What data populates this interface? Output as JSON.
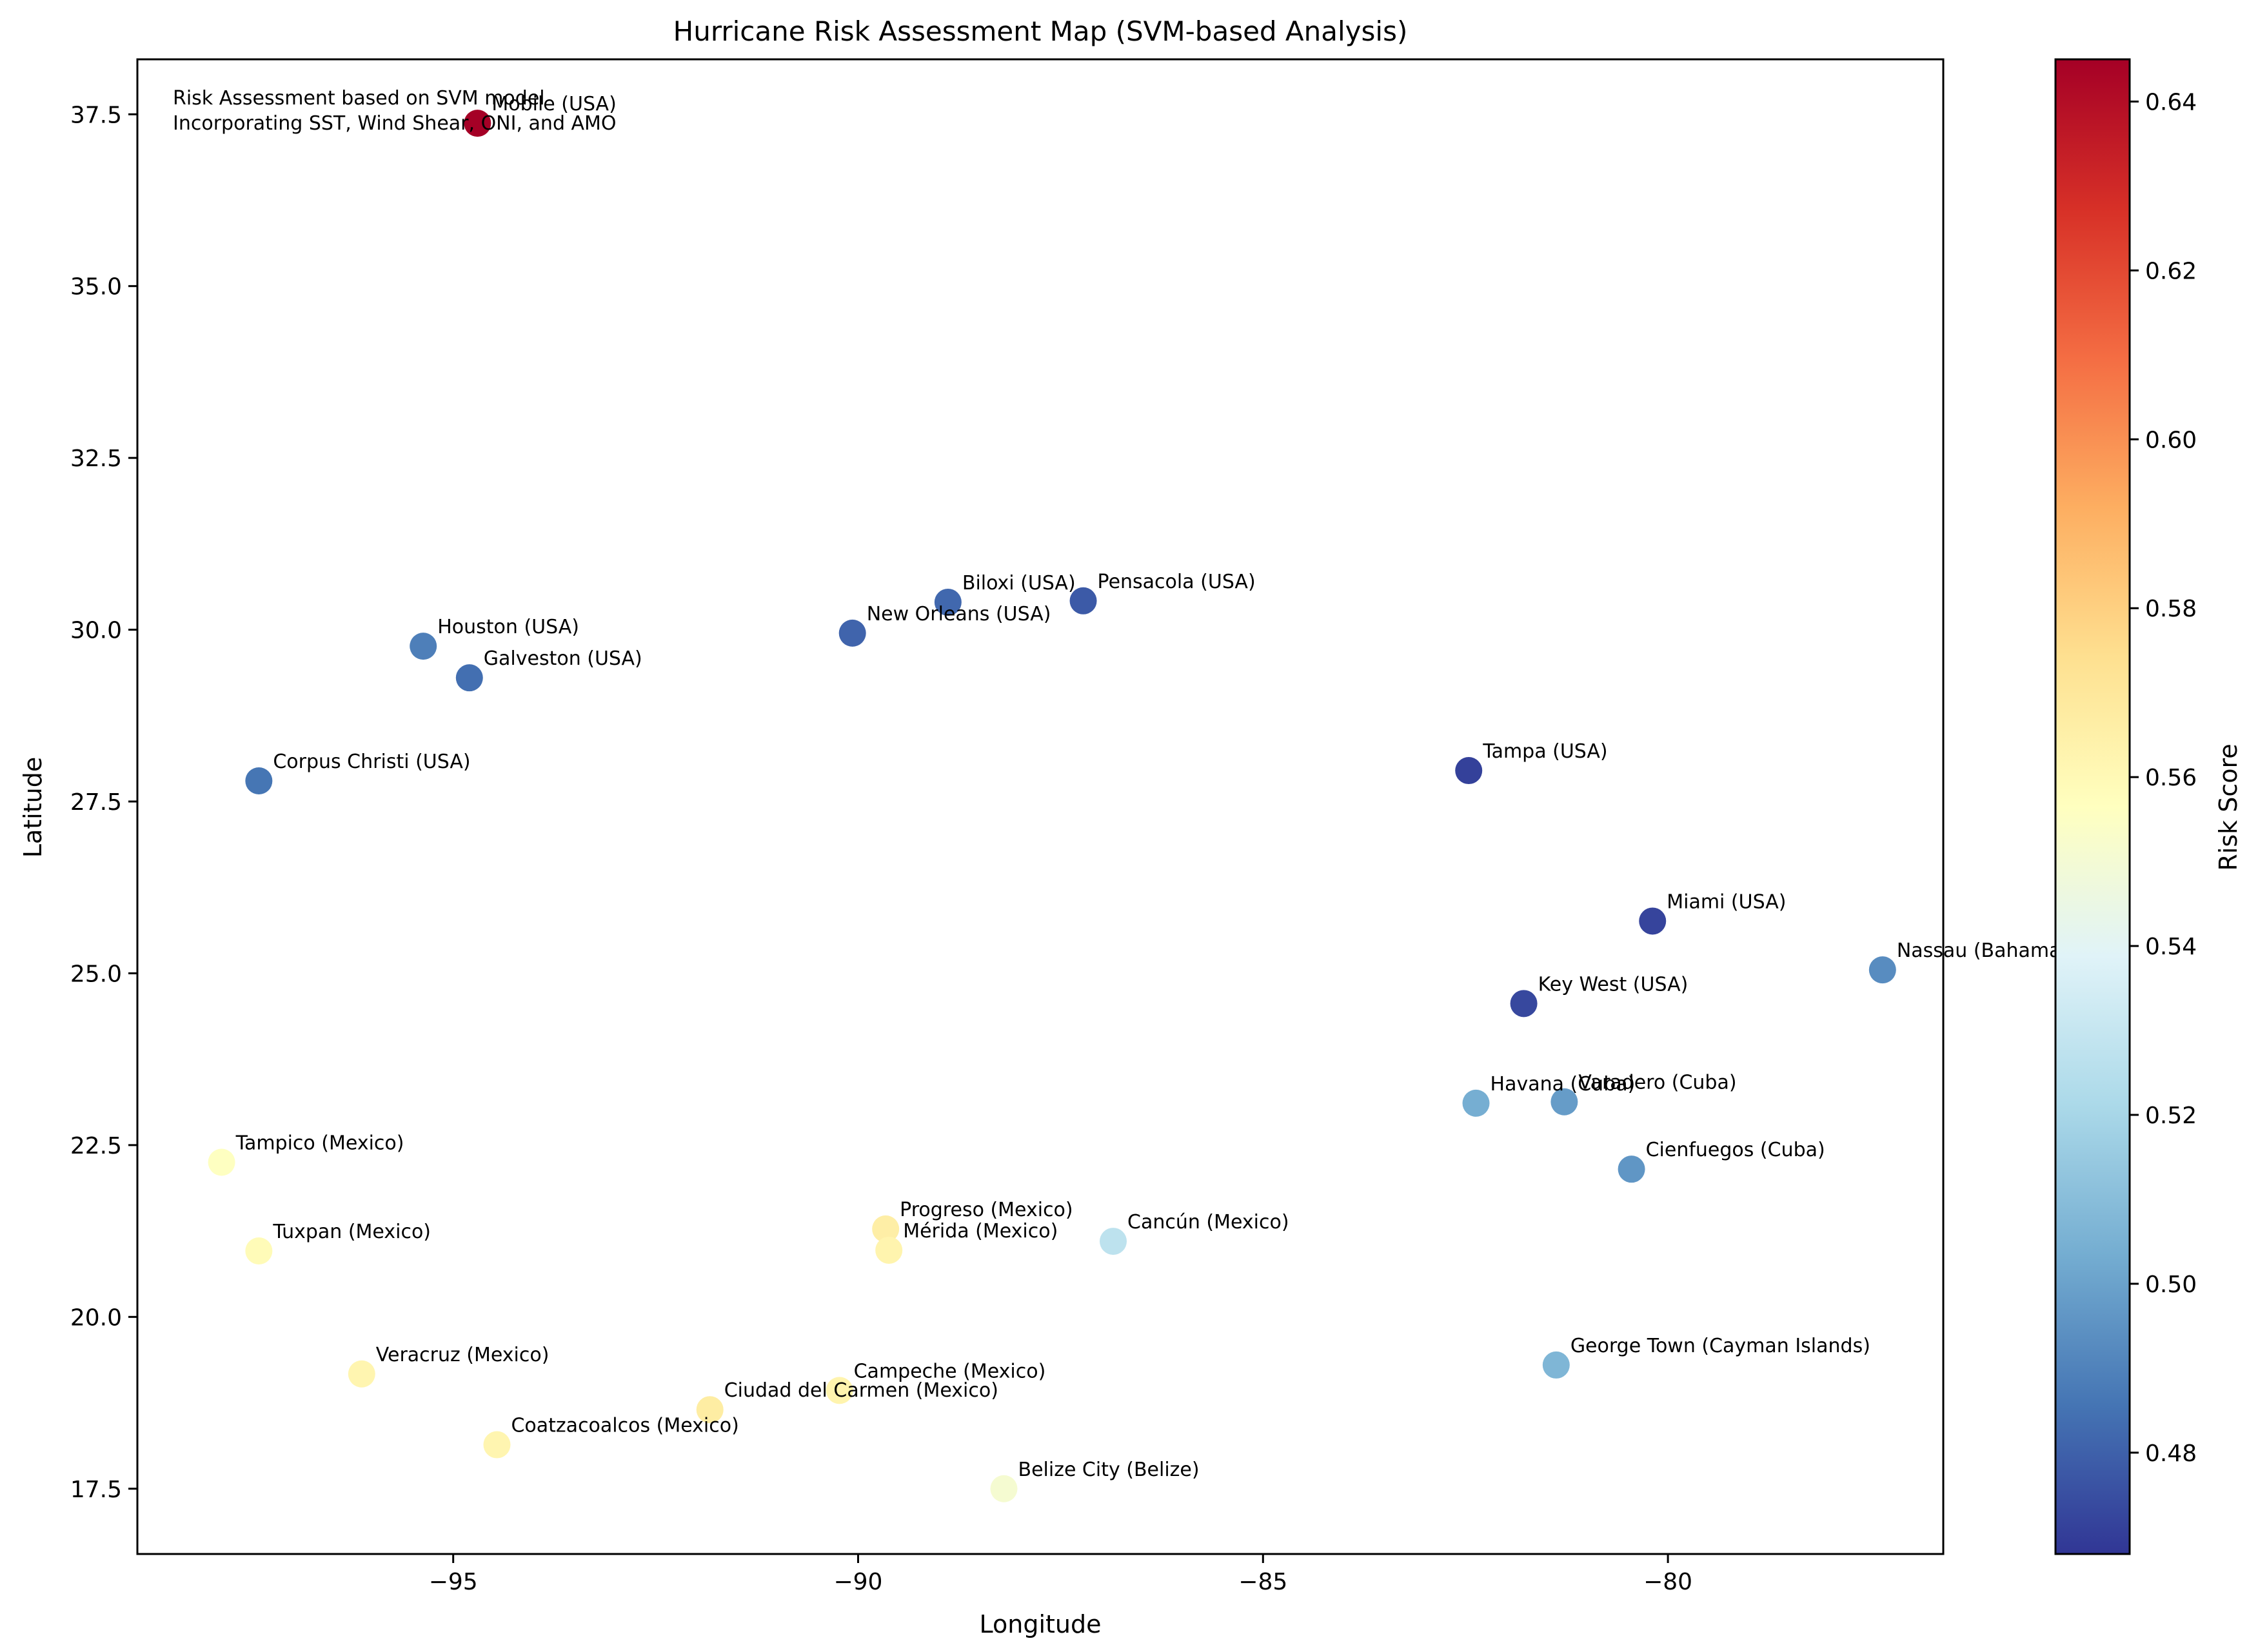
{
  "chart_data": {
    "type": "scatter",
    "title": "Hurricane Risk Assessment Map (SVM-based Analysis)",
    "xlabel": "Longitude",
    "ylabel": "Latitude",
    "xlim": [
      -98.9,
      -76.6
    ],
    "ylim": [
      16.55,
      38.3
    ],
    "xticks": [
      -95,
      -90,
      -85,
      -80
    ],
    "xtick_labels": [
      "−95",
      "−90",
      "−85",
      "−80"
    ],
    "yticks": [
      17.5,
      20.0,
      22.5,
      25.0,
      27.5,
      30.0,
      32.5,
      35.0,
      37.5
    ],
    "ytick_labels": [
      "17.5",
      "20.0",
      "22.5",
      "25.0",
      "27.5",
      "30.0",
      "32.5",
      "35.0",
      "37.5"
    ],
    "grid": false,
    "annotation_lines": [
      "Risk Assessment based on SVM model",
      "Incorporating SST, Wind Shear, ONI, and AMO"
    ],
    "colorbar": {
      "label": "Risk Score",
      "colormap": "RdYlBu_r",
      "range": [
        0.468,
        0.645
      ],
      "ticks": [
        0.48,
        0.5,
        0.52,
        0.54,
        0.56,
        0.58,
        0.6,
        0.62,
        0.64
      ],
      "tick_labels": [
        "0.48",
        "0.50",
        "0.52",
        "0.54",
        "0.56",
        "0.58",
        "0.60",
        "0.62",
        "0.64"
      ]
    },
    "points": [
      {
        "label": "Mobile (USA)",
        "lon": -94.7,
        "lat": 37.37,
        "risk": 0.645
      },
      {
        "label": "Houston (USA)",
        "lon": -95.37,
        "lat": 29.76,
        "risk": 0.489
      },
      {
        "label": "Galveston (USA)",
        "lon": -94.8,
        "lat": 29.3,
        "risk": 0.484
      },
      {
        "label": "Corpus Christi (USA)",
        "lon": -97.4,
        "lat": 27.8,
        "risk": 0.486
      },
      {
        "label": "New Orleans (USA)",
        "lon": -90.07,
        "lat": 29.95,
        "risk": 0.481
      },
      {
        "label": "Biloxi (USA)",
        "lon": -88.89,
        "lat": 30.4,
        "risk": 0.482
      },
      {
        "label": "Pensacola (USA)",
        "lon": -87.22,
        "lat": 30.42,
        "risk": 0.478
      },
      {
        "label": "Tampa (USA)",
        "lon": -82.46,
        "lat": 27.95,
        "risk": 0.471
      },
      {
        "label": "Miami (USA)",
        "lon": -80.19,
        "lat": 25.76,
        "risk": 0.472
      },
      {
        "label": "Key West (USA)",
        "lon": -81.78,
        "lat": 24.56,
        "risk": 0.473
      },
      {
        "label": "Nassau (Bahamas)",
        "lon": -77.35,
        "lat": 25.05,
        "risk": 0.493
      },
      {
        "label": "Havana (Cuba)",
        "lon": -82.37,
        "lat": 23.11,
        "risk": 0.504
      },
      {
        "label": "Varadero (Cuba)",
        "lon": -81.28,
        "lat": 23.13,
        "risk": 0.498
      },
      {
        "label": "Cienfuegos (Cuba)",
        "lon": -80.45,
        "lat": 22.15,
        "risk": 0.496
      },
      {
        "label": "George Town (Cayman Islands)",
        "lon": -81.38,
        "lat": 19.3,
        "risk": 0.507
      },
      {
        "label": "Cancún (Mexico)",
        "lon": -86.85,
        "lat": 21.1,
        "risk": 0.527
      },
      {
        "label": "Progreso (Mexico)",
        "lon": -89.66,
        "lat": 21.28,
        "risk": 0.566
      },
      {
        "label": "Mérida (Mexico)",
        "lon": -89.62,
        "lat": 20.97,
        "risk": 0.563
      },
      {
        "label": "Campeche (Mexico)",
        "lon": -90.23,
        "lat": 18.93,
        "risk": 0.563
      },
      {
        "label": "Ciudad del Carmen (Mexico)",
        "lon": -91.83,
        "lat": 18.65,
        "risk": 0.567
      },
      {
        "label": "Coatzacoalcos (Mexico)",
        "lon": -94.46,
        "lat": 18.14,
        "risk": 0.562
      },
      {
        "label": "Veracruz (Mexico)",
        "lon": -96.13,
        "lat": 19.17,
        "risk": 0.562
      },
      {
        "label": "Tampico (Mexico)",
        "lon": -97.86,
        "lat": 22.25,
        "risk": 0.556
      },
      {
        "label": "Tuxpan (Mexico)",
        "lon": -97.4,
        "lat": 20.96,
        "risk": 0.559
      },
      {
        "label": "Belize City (Belize)",
        "lon": -88.2,
        "lat": 17.5,
        "risk": 0.551
      }
    ]
  }
}
